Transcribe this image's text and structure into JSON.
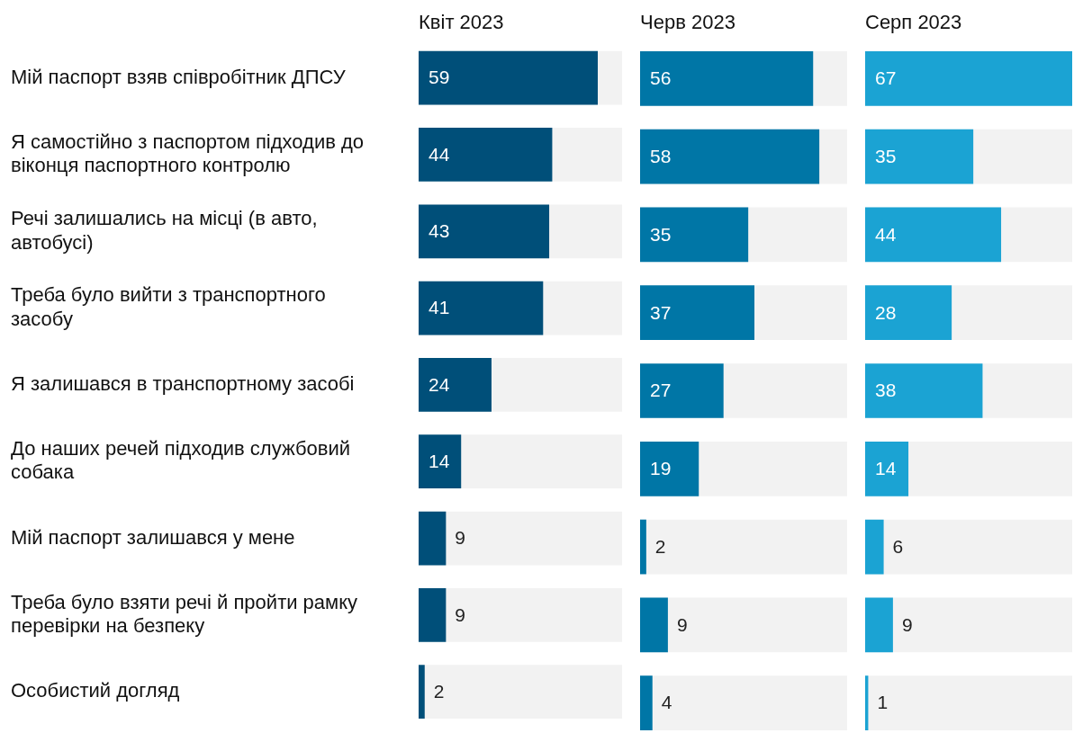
{
  "chart_data": [
    {
      "type": "bar",
      "orientation": "horizontal",
      "title": "Квіт 2023",
      "categories": [
        "Мій паспорт взяв співробітник ДПСУ",
        "Я самостійно з паспортом підходив до віконця паспортного контролю",
        "Речі залишались на місці (в авто, автобусі)",
        "Треба було вийти з транспортного засобу",
        "Я залишався в транспортному засобі",
        "До наших речей підходив службовий собака",
        "Мій паспорт залишався у мене",
        "Треба було взяти речі й пройти рамку перевірки на безпеку",
        "Особистий догляд"
      ],
      "values": [
        59,
        44,
        43,
        41,
        24,
        14,
        9,
        9,
        2
      ],
      "color": "#004f79",
      "xlim": [
        0,
        67
      ],
      "data_labels": true,
      "tick_labels": "y",
      "grid": false,
      "legend": false
    },
    {
      "type": "bar",
      "orientation": "horizontal",
      "title": "Черв 2023",
      "categories": [
        null,
        null,
        null,
        null,
        null,
        null,
        null,
        null,
        null
      ],
      "values": [
        56,
        58,
        35,
        37,
        27,
        19,
        2,
        9,
        4
      ],
      "color": "#0076a6",
      "xlim": [
        0,
        67
      ],
      "data_labels": true,
      "tick_labels": false,
      "grid": false,
      "legend": false
    },
    {
      "type": "bar",
      "orientation": "horizontal",
      "title": "Серп 2023",
      "categories": [
        null,
        null,
        null,
        null,
        null,
        null,
        null,
        null,
        null
      ],
      "values": [
        67,
        35,
        44,
        28,
        38,
        14,
        6,
        9,
        1
      ],
      "color": "#1ba3d3",
      "xlim": [
        0,
        67
      ],
      "data_labels": true,
      "tick_labels": false,
      "grid": false,
      "legend": false
    }
  ]
}
